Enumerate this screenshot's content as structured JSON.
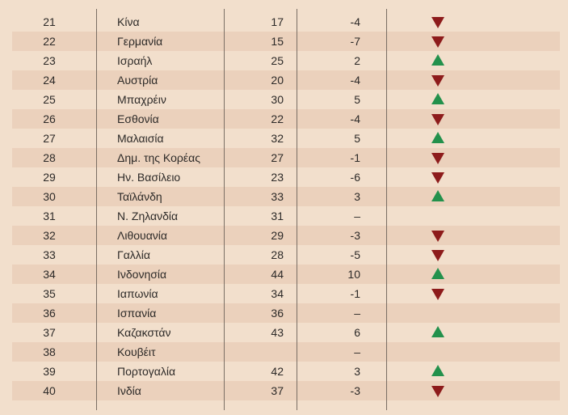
{
  "colors": {
    "background": "#f2dfcc",
    "row_alt": "#ebd1bc",
    "up": "#23914c",
    "down": "#8d1b1b"
  },
  "rows": [
    {
      "rank": "21",
      "country": "Κίνα",
      "prev": "17",
      "diff": "-4",
      "trend": "down"
    },
    {
      "rank": "22",
      "country": "Γερμανία",
      "prev": "15",
      "diff": "-7",
      "trend": "down"
    },
    {
      "rank": "23",
      "country": "Ισραήλ",
      "prev": "25",
      "diff": "2",
      "trend": "up"
    },
    {
      "rank": "24",
      "country": "Αυστρία",
      "prev": "20",
      "diff": "-4",
      "trend": "down"
    },
    {
      "rank": "25",
      "country": "Μπαχρέιν",
      "prev": "30",
      "diff": "5",
      "trend": "up"
    },
    {
      "rank": "26",
      "country": "Εσθονία",
      "prev": "22",
      "diff": "-4",
      "trend": "down"
    },
    {
      "rank": "27",
      "country": "Μαλαισία",
      "prev": "32",
      "diff": "5",
      "trend": "up"
    },
    {
      "rank": "28",
      "country": "Δημ. της Κορέας",
      "prev": "27",
      "diff": "-1",
      "trend": "down"
    },
    {
      "rank": "29",
      "country": "Ην. Βασίλειο",
      "prev": "23",
      "diff": "-6",
      "trend": "down"
    },
    {
      "rank": "30",
      "country": "Ταϊλάνδη",
      "prev": "33",
      "diff": "3",
      "trend": "up"
    },
    {
      "rank": "31",
      "country": "Ν. Ζηλανδία",
      "prev": "31",
      "diff": "–",
      "trend": "none"
    },
    {
      "rank": "32",
      "country": "Λιθουανία",
      "prev": "29",
      "diff": "-3",
      "trend": "down"
    },
    {
      "rank": "33",
      "country": "Γαλλία",
      "prev": "28",
      "diff": "-5",
      "trend": "down"
    },
    {
      "rank": "34",
      "country": "Ινδονησία",
      "prev": "44",
      "diff": "10",
      "trend": "up"
    },
    {
      "rank": "35",
      "country": "Ιαπωνία",
      "prev": "34",
      "diff": "-1",
      "trend": "down"
    },
    {
      "rank": "36",
      "country": "Ισπανία",
      "prev": "36",
      "diff": "–",
      "trend": "none"
    },
    {
      "rank": "37",
      "country": "Καζακστάν",
      "prev": "43",
      "diff": "6",
      "trend": "up"
    },
    {
      "rank": "38",
      "country": "Κουβέιτ",
      "prev": "",
      "diff": "–",
      "trend": "none"
    },
    {
      "rank": "39",
      "country": "Πορτογαλία",
      "prev": "42",
      "diff": "3",
      "trend": "up"
    },
    {
      "rank": "40",
      "country": "Ινδία",
      "prev": "37",
      "diff": "-3",
      "trend": "down"
    }
  ]
}
